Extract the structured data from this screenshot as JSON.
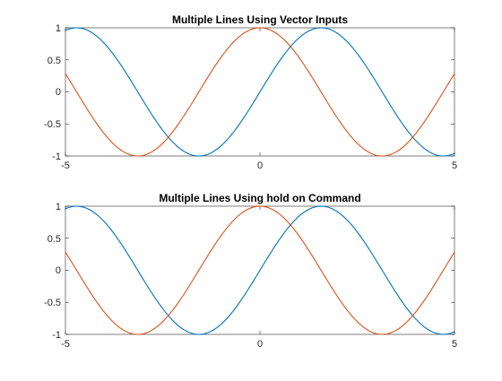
{
  "chart_data": [
    {
      "type": "line",
      "title": "Multiple Lines Using Vector Inputs",
      "xlabel": "",
      "ylabel": "",
      "xlim": [
        -5,
        5
      ],
      "ylim": [
        -1,
        1
      ],
      "xticks": [
        -5,
        0,
        5
      ],
      "xtick_labels": [
        "-5",
        "0",
        "5"
      ],
      "yticks": [
        -1,
        -0.5,
        0,
        0.5,
        1
      ],
      "ytick_labels": [
        "-1",
        "-0.5",
        "0",
        "0.5",
        "1"
      ],
      "grid": false,
      "series": [
        {
          "function": "sin(x)",
          "color": "#0072BD",
          "x": [
            -5,
            -4.75,
            -4.5,
            -4.25,
            -4,
            -3.75,
            -3.5,
            -3.25,
            -3,
            -2.75,
            -2.5,
            -2.25,
            -2,
            -1.75,
            -1.5,
            -1.25,
            -1,
            -0.75,
            -0.5,
            -0.25,
            0,
            0.25,
            0.5,
            0.75,
            1,
            1.25,
            1.5,
            1.75,
            2,
            2.25,
            2.5,
            2.75,
            3,
            3.25,
            3.5,
            3.75,
            4,
            4.25,
            4.5,
            4.75,
            5
          ],
          "y": [
            0.9589,
            0.9993,
            0.9775,
            0.895,
            0.7568,
            0.5716,
            0.3508,
            0.1082,
            -0.1411,
            -0.3817,
            -0.5985,
            -0.7781,
            -0.9093,
            -0.984,
            -0.9975,
            -0.949,
            -0.8415,
            -0.6816,
            -0.4794,
            -0.2474,
            0,
            0.2474,
            0.4794,
            0.6816,
            0.8415,
            0.949,
            0.9975,
            0.984,
            0.9093,
            0.7781,
            0.5985,
            0.3817,
            0.1411,
            -0.1082,
            -0.3508,
            -0.5716,
            -0.7568,
            -0.895,
            -0.9775,
            -0.9993,
            -0.9589
          ]
        },
        {
          "function": "cos(x)",
          "color": "#D95319",
          "x": [
            -5,
            -4.75,
            -4.5,
            -4.25,
            -4,
            -3.75,
            -3.5,
            -3.25,
            -3,
            -2.75,
            -2.5,
            -2.25,
            -2,
            -1.75,
            -1.5,
            -1.25,
            -1,
            -0.75,
            -0.5,
            -0.25,
            0,
            0.25,
            0.5,
            0.75,
            1,
            1.25,
            1.5,
            1.75,
            2,
            2.25,
            2.5,
            2.75,
            3,
            3.25,
            3.5,
            3.75,
            4,
            4.25,
            4.5,
            4.75,
            5
          ],
          "y": [
            0.2837,
            0.0376,
            -0.2108,
            -0.4461,
            -0.6536,
            -0.8206,
            -0.9365,
            -0.9941,
            -0.99,
            -0.9243,
            -0.8011,
            -0.6282,
            -0.4161,
            -0.1782,
            0.0707,
            0.3153,
            0.5403,
            0.7317,
            0.8776,
            0.9689,
            1,
            0.9689,
            0.8776,
            0.7317,
            0.5403,
            0.3153,
            0.0707,
            -0.1782,
            -0.4161,
            -0.6282,
            -0.8011,
            -0.9243,
            -0.99,
            -0.9941,
            -0.9365,
            -0.8206,
            -0.6536,
            -0.4461,
            -0.2108,
            0.0376,
            0.2837
          ]
        }
      ]
    },
    {
      "type": "line",
      "title": "Multiple Lines Using hold on Command",
      "xlabel": "",
      "ylabel": "",
      "xlim": [
        -5,
        5
      ],
      "ylim": [
        -1,
        1
      ],
      "xticks": [
        -5,
        0,
        5
      ],
      "xtick_labels": [
        "-5",
        "0",
        "5"
      ],
      "yticks": [
        -1,
        -0.5,
        0,
        0.5,
        1
      ],
      "ytick_labels": [
        "-1",
        "-0.5",
        "0",
        "0.5",
        "1"
      ],
      "grid": false,
      "series": [
        {
          "function": "sin(x)",
          "color": "#0072BD",
          "x": [
            -5,
            -4.75,
            -4.5,
            -4.25,
            -4,
            -3.75,
            -3.5,
            -3.25,
            -3,
            -2.75,
            -2.5,
            -2.25,
            -2,
            -1.75,
            -1.5,
            -1.25,
            -1,
            -0.75,
            -0.5,
            -0.25,
            0,
            0.25,
            0.5,
            0.75,
            1,
            1.25,
            1.5,
            1.75,
            2,
            2.25,
            2.5,
            2.75,
            3,
            3.25,
            3.5,
            3.75,
            4,
            4.25,
            4.5,
            4.75,
            5
          ],
          "y": [
            0.9589,
            0.9993,
            0.9775,
            0.895,
            0.7568,
            0.5716,
            0.3508,
            0.1082,
            -0.1411,
            -0.3817,
            -0.5985,
            -0.7781,
            -0.9093,
            -0.984,
            -0.9975,
            -0.949,
            -0.8415,
            -0.6816,
            -0.4794,
            -0.2474,
            0,
            0.2474,
            0.4794,
            0.6816,
            0.8415,
            0.949,
            0.9975,
            0.984,
            0.9093,
            0.7781,
            0.5985,
            0.3817,
            0.1411,
            -0.1082,
            -0.3508,
            -0.5716,
            -0.7568,
            -0.895,
            -0.9775,
            -0.9993,
            -0.9589
          ]
        },
        {
          "function": "cos(x)",
          "color": "#D95319",
          "x": [
            -5,
            -4.75,
            -4.5,
            -4.25,
            -4,
            -3.75,
            -3.5,
            -3.25,
            -3,
            -2.75,
            -2.5,
            -2.25,
            -2,
            -1.75,
            -1.5,
            -1.25,
            -1,
            -0.75,
            -0.5,
            -0.25,
            0,
            0.25,
            0.5,
            0.75,
            1,
            1.25,
            1.5,
            1.75,
            2,
            2.25,
            2.5,
            2.75,
            3,
            3.25,
            3.5,
            3.75,
            4,
            4.25,
            4.5,
            4.75,
            5
          ],
          "y": [
            0.2837,
            0.0376,
            -0.2108,
            -0.4461,
            -0.6536,
            -0.8206,
            -0.9365,
            -0.9941,
            -0.99,
            -0.9243,
            -0.8011,
            -0.6282,
            -0.4161,
            -0.1782,
            0.0707,
            0.3153,
            0.5403,
            0.7317,
            0.8776,
            0.9689,
            1,
            0.9689,
            0.8776,
            0.7317,
            0.5403,
            0.3153,
            0.0707,
            -0.1782,
            -0.4161,
            -0.6282,
            -0.8011,
            -0.9243,
            -0.99,
            -0.9941,
            -0.9365,
            -0.8206,
            -0.6536,
            -0.4461,
            -0.2108,
            0.0376,
            0.2837
          ]
        }
      ]
    }
  ]
}
